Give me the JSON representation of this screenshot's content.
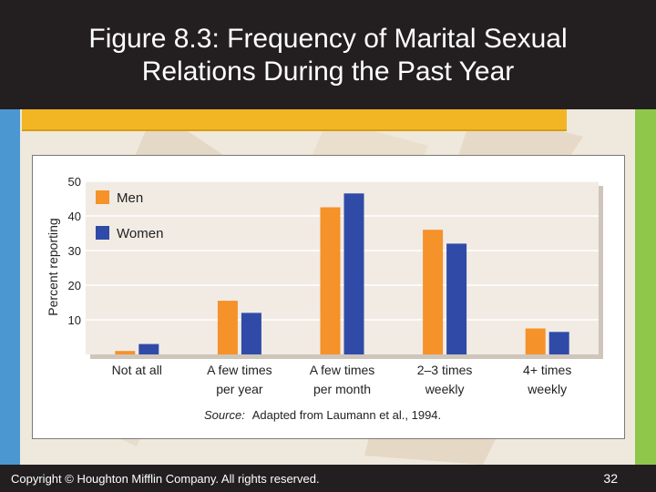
{
  "slide": {
    "title_line_1": "Figure 8.3: Frequency of Marital Sexual",
    "title_line_2": "Relations During the Past Year",
    "copyright": "Copyright © Houghton Mifflin Company. All rights reserved.",
    "page_number": "32"
  },
  "colors": {
    "men": "#f5922a",
    "women": "#2f4ba7",
    "plot_background": "#f1ebe4",
    "header": "#231f20",
    "accent": "#f2b625"
  },
  "chart_data": {
    "type": "bar",
    "categories": [
      [
        "Not at all"
      ],
      [
        "A few times",
        "per year"
      ],
      [
        "A few times",
        "per month"
      ],
      [
        "2–3 times",
        "weekly"
      ],
      [
        "4+ times",
        "weekly"
      ]
    ],
    "series": [
      {
        "name": "Men",
        "values": [
          1,
          15.5,
          42.5,
          36,
          7.5
        ]
      },
      {
        "name": "Women",
        "values": [
          3,
          12,
          46.5,
          32,
          6.5
        ]
      }
    ],
    "ylabel": "Percent reporting",
    "xlabel": "",
    "ylim": [
      0,
      50
    ],
    "yticks": [
      10,
      20,
      30,
      40,
      50
    ],
    "grid": true,
    "legend_placement": "top-left",
    "source_label": "Source:",
    "source_text": "Adapted from Laumann et al., 1994."
  }
}
